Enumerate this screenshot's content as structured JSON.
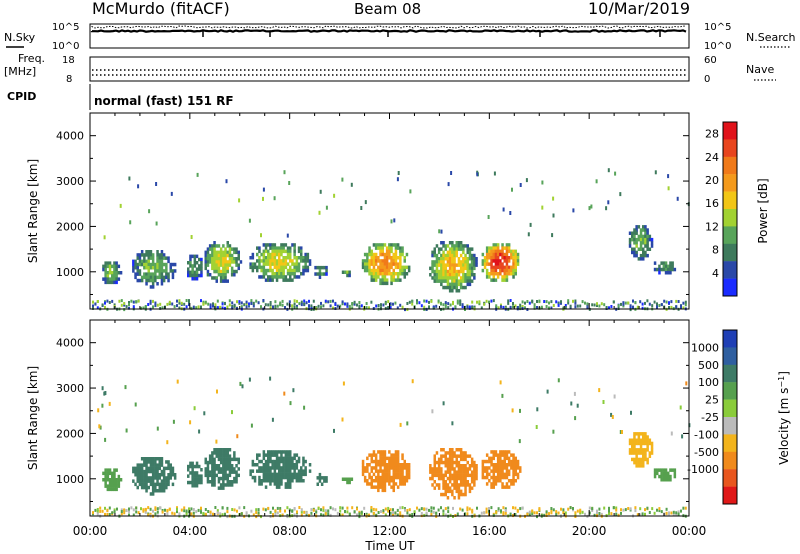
{
  "header": {
    "station": "McMurdo (fitACF)",
    "beam": "Beam 08",
    "date": "10/Mar/2019"
  },
  "noise_panel": {
    "left_label": "N.Sky",
    "right_label": "N.Search",
    "left_ticks": [
      "10^5",
      "10^0"
    ],
    "right_ticks": [
      "10^5",
      "10^0"
    ]
  },
  "freq_panel": {
    "left_label_1": "Freq.",
    "left_label_2": "[MHz]",
    "right_label": "Nave",
    "left_ticks": [
      "18",
      "8"
    ],
    "right_ticks": [
      "60",
      "0"
    ]
  },
  "cpid_panel": {
    "label": "CPID",
    "text": "normal (fast) 151 RF"
  },
  "x_axis": {
    "label": "Time UT",
    "ticks": [
      "00:00",
      "04:00",
      "08:00",
      "12:00",
      "16:00",
      "20:00",
      "00:00"
    ]
  },
  "colors": {
    "power_scale": [
      "#1a2bff",
      "#2a48a8",
      "#3e7a5c",
      "#58a45a",
      "#a2d232",
      "#f2c616",
      "#f49a1c",
      "#f07a1a",
      "#e8451e",
      "#e0121a"
    ],
    "velocity_scale": [
      "#1f3fb5",
      "#2f5fa0",
      "#3e7b66",
      "#56a04e",
      "#8acc3a",
      "#bbbbbb",
      "#f3b41c",
      "#f08a1c",
      "#e8561e",
      "#e01818"
    ]
  },
  "chart_data": [
    {
      "type": "heatmap",
      "title": "Power",
      "xlabel": "Time UT",
      "ylabel": "Slant Range [km]",
      "xlim": [
        0,
        24
      ],
      "ylim": [
        180,
        4500
      ],
      "y_ticks": [
        "1000",
        "2000",
        "3000",
        "4000"
      ],
      "colorbar": {
        "label": "Power [dB]",
        "tick_labels": [
          "4",
          "8",
          "12",
          "16",
          "20",
          "24",
          "28"
        ],
        "range": [
          0,
          30
        ]
      },
      "regions": [
        {
          "t_start": 0.4,
          "t_end": 1.2,
          "r_min": 750,
          "r_max": 1300,
          "value": 13
        },
        {
          "t_start": 1.6,
          "t_end": 3.4,
          "r_min": 700,
          "r_max": 1550,
          "value": 12
        },
        {
          "t_start": 3.8,
          "t_end": 4.5,
          "r_min": 850,
          "r_max": 1450,
          "value": 10
        },
        {
          "t_start": 4.5,
          "t_end": 6.0,
          "r_min": 800,
          "r_max": 1750,
          "value": 16
        },
        {
          "t_start": 6.3,
          "t_end": 8.8,
          "r_min": 800,
          "r_max": 1700,
          "value": 16
        },
        {
          "t_start": 8.9,
          "t_end": 9.5,
          "r_min": 900,
          "r_max": 1200,
          "value": 10
        },
        {
          "t_start": 10.0,
          "t_end": 10.5,
          "r_min": 950,
          "r_max": 1100,
          "value": 12
        },
        {
          "t_start": 10.8,
          "t_end": 12.8,
          "r_min": 750,
          "r_max": 1700,
          "value": 22
        },
        {
          "t_start": 13.5,
          "t_end": 15.5,
          "r_min": 600,
          "r_max": 1750,
          "value": 18
        },
        {
          "t_start": 15.6,
          "t_end": 17.2,
          "r_min": 800,
          "r_max": 1700,
          "value": 28
        },
        {
          "t_start": 21.5,
          "t_end": 22.5,
          "r_min": 1300,
          "r_max": 2100,
          "value": 12
        },
        {
          "t_start": 22.5,
          "t_end": 23.5,
          "r_min": 1000,
          "r_max": 1300,
          "value": 10
        }
      ]
    },
    {
      "type": "heatmap",
      "title": "Velocity",
      "xlabel": "Time UT",
      "ylabel": "Slant Range [km]",
      "xlim": [
        0,
        24
      ],
      "ylim": [
        180,
        4500
      ],
      "y_ticks": [
        "1000",
        "2000",
        "3000",
        "4000"
      ],
      "colorbar": {
        "label": "Velocity [m s^-1]",
        "tick_labels": [
          "1000",
          "500",
          "100",
          "25",
          "-25",
          "-100",
          "-500",
          "-1000"
        ]
      },
      "regions": [
        {
          "t_start": 0.4,
          "t_end": 1.2,
          "r_min": 750,
          "r_max": 1300,
          "value": 60
        },
        {
          "t_start": 1.6,
          "t_end": 3.4,
          "r_min": 700,
          "r_max": 1550,
          "value": 250
        },
        {
          "t_start": 3.8,
          "t_end": 4.5,
          "r_min": 850,
          "r_max": 1450,
          "value": 250
        },
        {
          "t_start": 4.5,
          "t_end": 6.0,
          "r_min": 800,
          "r_max": 1750,
          "value": 250
        },
        {
          "t_start": 6.3,
          "t_end": 8.8,
          "r_min": 800,
          "r_max": 1700,
          "value": 250
        },
        {
          "t_start": 8.9,
          "t_end": 9.5,
          "r_min": 900,
          "r_max": 1200,
          "value": 250
        },
        {
          "t_start": 10.0,
          "t_end": 10.5,
          "r_min": 950,
          "r_max": 1100,
          "value": 60
        },
        {
          "t_start": 10.8,
          "t_end": 12.8,
          "r_min": 750,
          "r_max": 1700,
          "value": -250
        },
        {
          "t_start": 13.5,
          "t_end": 15.5,
          "r_min": 600,
          "r_max": 1750,
          "value": -250
        },
        {
          "t_start": 15.6,
          "t_end": 17.2,
          "r_min": 800,
          "r_max": 1700,
          "value": -250
        },
        {
          "t_start": 21.5,
          "t_end": 22.5,
          "r_min": 1300,
          "r_max": 2100,
          "value": -60
        },
        {
          "t_start": 22.5,
          "t_end": 23.5,
          "r_min": 1000,
          "r_max": 1300,
          "value": 60
        }
      ]
    }
  ]
}
